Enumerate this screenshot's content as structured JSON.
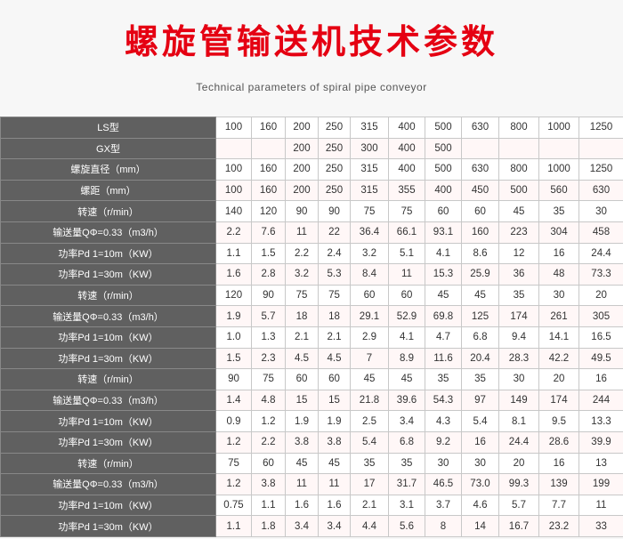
{
  "header": {
    "title": "螺旋管输送机技术参数",
    "subtitle": "Technical parameters of spiral pipe conveyor"
  },
  "colors": {
    "title": "#e50012",
    "label_bg": "#606060"
  },
  "table": {
    "rows": [
      {
        "label": "LS型",
        "values": [
          "100",
          "160",
          "200",
          "250",
          "315",
          "400",
          "500",
          "630",
          "800",
          "1000",
          "1250"
        ]
      },
      {
        "label": "GX型",
        "values": [
          "",
          "",
          "200",
          "250",
          "300",
          "400",
          "500",
          "",
          "",
          "",
          ""
        ]
      },
      {
        "label": "螺旋直径（mm）",
        "values": [
          "100",
          "160",
          "200",
          "250",
          "315",
          "400",
          "500",
          "630",
          "800",
          "1000",
          "1250"
        ]
      },
      {
        "label": "螺距（mm）",
        "values": [
          "100",
          "160",
          "200",
          "250",
          "315",
          "355",
          "400",
          "450",
          "500",
          "560",
          "630"
        ]
      },
      {
        "label": "转速（r/min）",
        "values": [
          "140",
          "120",
          "90",
          "90",
          "75",
          "75",
          "60",
          "60",
          "45",
          "35",
          "30"
        ]
      },
      {
        "label": "输送量QΦ=0.33（m3/h）",
        "values": [
          "2.2",
          "7.6",
          "11",
          "22",
          "36.4",
          "66.1",
          "93.1",
          "160",
          "223",
          "304",
          "458"
        ]
      },
      {
        "label": "功率Pd 1=10m（KW）",
        "values": [
          "1.1",
          "1.5",
          "2.2",
          "2.4",
          "3.2",
          "5.1",
          "4.1",
          "8.6",
          "12",
          "16",
          "24.4"
        ]
      },
      {
        "label": "功率Pd 1=30m（KW）",
        "values": [
          "1.6",
          "2.8",
          "3.2",
          "5.3",
          "8.4",
          "11",
          "15.3",
          "25.9",
          "36",
          "48",
          "73.3"
        ]
      },
      {
        "label": "转速（r/min）",
        "values": [
          "120",
          "90",
          "75",
          "75",
          "60",
          "60",
          "45",
          "45",
          "35",
          "30",
          "20"
        ]
      },
      {
        "label": "输送量QΦ=0.33（m3/h）",
        "values": [
          "1.9",
          "5.7",
          "18",
          "18",
          "29.1",
          "52.9",
          "69.8",
          "125",
          "174",
          "261",
          "305"
        ]
      },
      {
        "label": "功率Pd 1=10m（KW）",
        "values": [
          "1.0",
          "1.3",
          "2.1",
          "2.1",
          "2.9",
          "4.1",
          "4.7",
          "6.8",
          "9.4",
          "14.1",
          "16.5"
        ]
      },
      {
        "label": "功率Pd 1=30m（KW）",
        "values": [
          "1.5",
          "2.3",
          "4.5",
          "4.5",
          "7",
          "8.9",
          "11.6",
          "20.4",
          "28.3",
          "42.2",
          "49.5"
        ]
      },
      {
        "label": "转速（r/min）",
        "values": [
          "90",
          "75",
          "60",
          "60",
          "45",
          "45",
          "35",
          "35",
          "30",
          "20",
          "16"
        ]
      },
      {
        "label": "输送量QΦ=0.33（m3/h）",
        "values": [
          "1.4",
          "4.8",
          "15",
          "15",
          "21.8",
          "39.6",
          "54.3",
          "97",
          "149",
          "174",
          "244"
        ]
      },
      {
        "label": "功率Pd 1=10m（KW）",
        "values": [
          "0.9",
          "1.2",
          "1.9",
          "1.9",
          "2.5",
          "3.4",
          "4.3",
          "5.4",
          "8.1",
          "9.5",
          "13.3"
        ]
      },
      {
        "label": "功率Pd 1=30m（KW）",
        "values": [
          "1.2",
          "2.2",
          "3.8",
          "3.8",
          "5.4",
          "6.8",
          "9.2",
          "16",
          "24.4",
          "28.6",
          "39.9"
        ]
      },
      {
        "label": "转速（r/min）",
        "values": [
          "75",
          "60",
          "45",
          "45",
          "35",
          "35",
          "30",
          "30",
          "20",
          "16",
          "13"
        ]
      },
      {
        "label": "输送量QΦ=0.33（m3/h）",
        "values": [
          "1.2",
          "3.8",
          "11",
          "11",
          "17",
          "31.7",
          "46.5",
          "73.0",
          "99.3",
          "139",
          "199"
        ]
      },
      {
        "label": "功率Pd 1=10m（KW）",
        "values": [
          "0.75",
          "1.1",
          "1.6",
          "1.6",
          "2.1",
          "3.1",
          "3.7",
          "4.6",
          "5.7",
          "7.7",
          "11"
        ]
      },
      {
        "label": "功率Pd 1=30m（KW）",
        "values": [
          "1.1",
          "1.8",
          "3.4",
          "3.4",
          "4.4",
          "5.6",
          "8",
          "14",
          "16.7",
          "23.2",
          "33"
        ]
      }
    ]
  }
}
